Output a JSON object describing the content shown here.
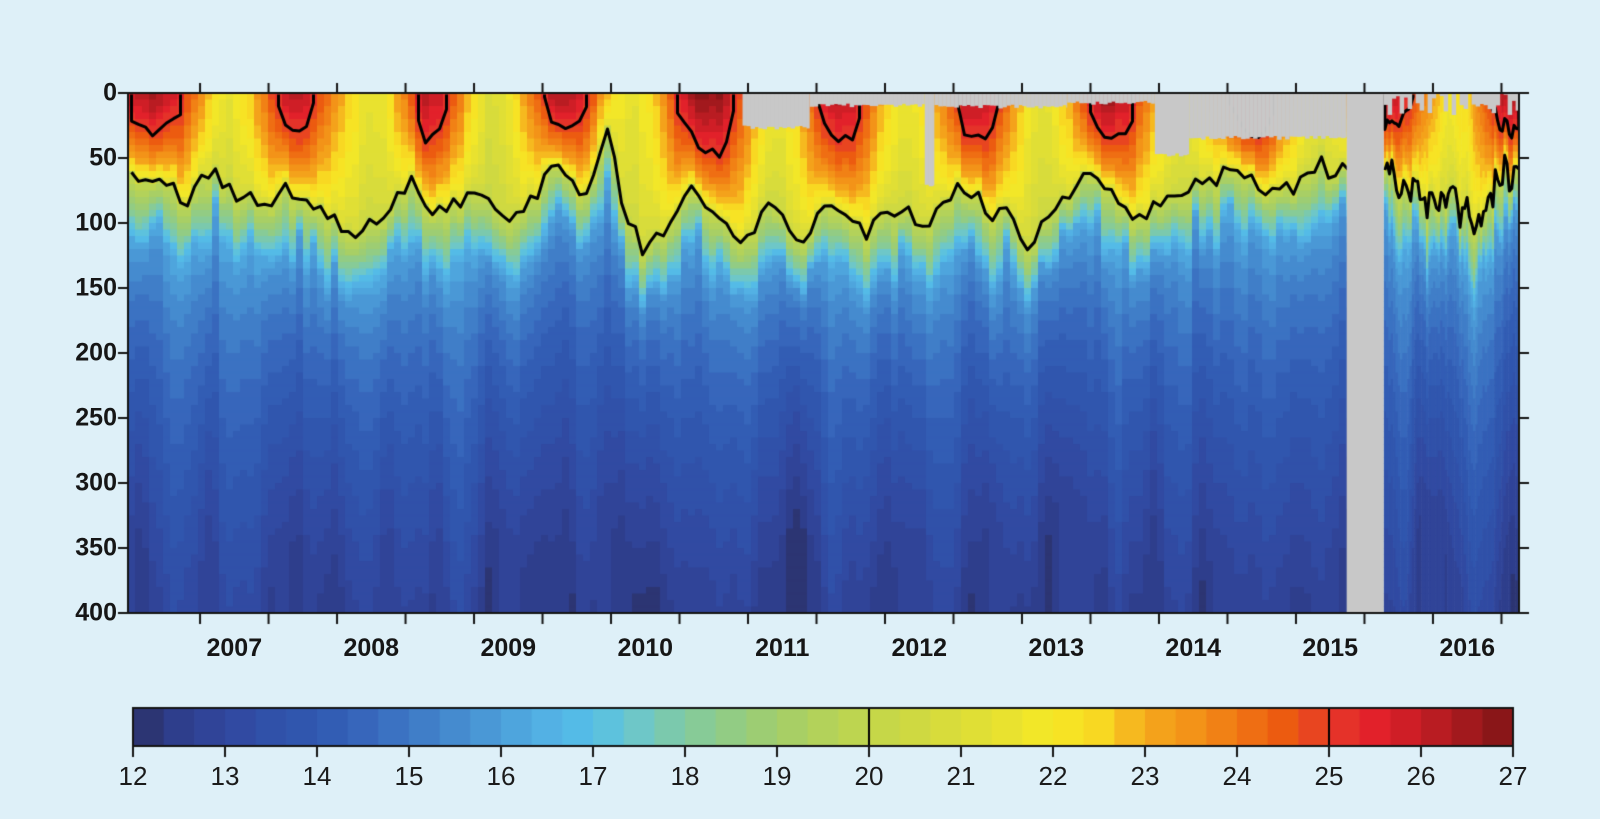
{
  "figure": {
    "background": "#def0f8",
    "frame_color": "#141414",
    "contour_color": "#000000",
    "missing_data_color": "#c8c8c8",
    "label_color": "#161616"
  },
  "chart_data": {
    "type": "heatmap",
    "title": "",
    "description": "Water temperature (deg C) versus depth (m) and time (years 2006-2016), jet colormap, black contours at 20 and 25 deg C, gray = missing data",
    "x_axis": {
      "start": 2006.474,
      "end": 2016.628,
      "minor_tick_step": 0.5,
      "year_labels": [
        "2007",
        "2008",
        "2009",
        "2010",
        "2011",
        "2012",
        "2013",
        "2014",
        "2015",
        "2016"
      ],
      "year_label_offset": 0.25
    },
    "y_axis": {
      "quantity": "depth",
      "min": 0,
      "max": 400,
      "tick_step": 50,
      "tick_labels": [
        "0",
        "50",
        "100",
        "150",
        "200",
        "250",
        "300",
        "350",
        "400"
      ]
    },
    "colorbar": {
      "min": 12,
      "max": 27,
      "segment_step": 0.3333,
      "tick_labels": [
        "12",
        "13",
        "14",
        "15",
        "16",
        "17",
        "18",
        "19",
        "20",
        "21",
        "22",
        "23",
        "24",
        "25",
        "26",
        "27"
      ],
      "marked_values": [
        20,
        25
      ],
      "colors": [
        [
          12,
          "#2b3166"
        ],
        [
          12.5,
          "#2e3e8c"
        ],
        [
          13,
          "#31479e"
        ],
        [
          13.5,
          "#3051a9"
        ],
        [
          14,
          "#3059b1"
        ],
        [
          14.5,
          "#3766bb"
        ],
        [
          15,
          "#3d78c5"
        ],
        [
          15.5,
          "#458bcf"
        ],
        [
          16,
          "#4c9fda"
        ],
        [
          16.5,
          "#53b1e4"
        ],
        [
          17,
          "#55c0e8"
        ],
        [
          17.5,
          "#6ec7c8"
        ],
        [
          18,
          "#81caa0"
        ],
        [
          18.5,
          "#92cc84"
        ],
        [
          19,
          "#a2ce6b"
        ],
        [
          19.5,
          "#b3d25a"
        ],
        [
          20,
          "#c2d64b"
        ],
        [
          20.5,
          "#cfd941"
        ],
        [
          21,
          "#dcdd38"
        ],
        [
          21.5,
          "#e9e22f"
        ],
        [
          22,
          "#f6e925"
        ],
        [
          22.5,
          "#f8d822"
        ],
        [
          23,
          "#f5a91d"
        ],
        [
          23.5,
          "#f39318"
        ],
        [
          24,
          "#f07814"
        ],
        [
          24.5,
          "#ec5b10"
        ],
        [
          25,
          "#e63a28"
        ],
        [
          25.5,
          "#e2212a"
        ],
        [
          26,
          "#c51d24"
        ],
        [
          26.5,
          "#a2191d"
        ],
        [
          27,
          "#7e1415"
        ]
      ]
    },
    "contours": {
      "levels": [
        20,
        25
      ]
    },
    "series": {
      "surface_temperature_knots": [
        [
          2006.47,
          26.2
        ],
        [
          2006.65,
          26.5
        ],
        [
          2006.85,
          25.6
        ],
        [
          2006.95,
          24.2
        ],
        [
          2007.1,
          22.2
        ],
        [
          2007.22,
          21.4
        ],
        [
          2007.35,
          22.4
        ],
        [
          2007.5,
          24.4
        ],
        [
          2007.63,
          26.3
        ],
        [
          2007.78,
          26.0
        ],
        [
          2007.9,
          24.6
        ],
        [
          2008.05,
          23.1
        ],
        [
          2008.2,
          21.5
        ],
        [
          2008.35,
          21.7
        ],
        [
          2008.5,
          24.1
        ],
        [
          2008.63,
          26.3
        ],
        [
          2008.78,
          25.7
        ],
        [
          2008.95,
          23.2
        ],
        [
          2009.1,
          21.0
        ],
        [
          2009.25,
          21.4
        ],
        [
          2009.4,
          23.6
        ],
        [
          2009.57,
          26.1
        ],
        [
          2009.68,
          26.6
        ],
        [
          2009.85,
          24.9
        ],
        [
          2010.0,
          22.4
        ],
        [
          2010.15,
          21.3
        ],
        [
          2010.3,
          22.1
        ],
        [
          2010.5,
          25.6
        ],
        [
          2010.65,
          27.0
        ],
        [
          2010.82,
          26.6
        ],
        [
          2010.95,
          24.6
        ],
        [
          2011.1,
          22.4
        ],
        [
          2011.22,
          21.6
        ],
        [
          2011.4,
          23.1
        ],
        [
          2011.55,
          25.8
        ],
        [
          2011.68,
          26.5
        ],
        [
          2011.82,
          25.6
        ],
        [
          2011.95,
          23.6
        ],
        [
          2012.1,
          21.7
        ],
        [
          2012.25,
          21.9
        ],
        [
          2012.45,
          24.1
        ],
        [
          2012.6,
          26.6
        ],
        [
          2012.75,
          26.2
        ],
        [
          2012.9,
          24.1
        ],
        [
          2013.05,
          21.9
        ],
        [
          2013.18,
          21.4
        ],
        [
          2013.35,
          23.1
        ],
        [
          2013.52,
          26.1
        ],
        [
          2013.63,
          26.7
        ],
        [
          2013.78,
          25.9
        ],
        [
          2013.9,
          24.1
        ],
        [
          2014.05,
          22.1
        ],
        [
          2014.18,
          21.3
        ],
        [
          2014.35,
          23.1
        ],
        [
          2014.55,
          25.6
        ],
        [
          2014.7,
          27.2
        ],
        [
          2014.85,
          25.1
        ],
        [
          2015.0,
          22.9
        ],
        [
          2015.15,
          21.5
        ],
        [
          2015.3,
          22.3
        ],
        [
          2015.45,
          24.6
        ],
        [
          2015.6,
          26.4
        ],
        [
          2015.73,
          26.2
        ],
        [
          2015.85,
          25.1
        ],
        [
          2016.0,
          23.1
        ],
        [
          2016.12,
          21.9
        ],
        [
          2016.25,
          22.6
        ],
        [
          2016.4,
          24.9
        ],
        [
          2016.52,
          26.6
        ],
        [
          2016.63,
          26.7
        ]
      ],
      "isotherm20_depth_knots": [
        [
          2006.47,
          68
        ],
        [
          2006.7,
          62
        ],
        [
          2006.9,
          85
        ],
        [
          2007.05,
          55
        ],
        [
          2007.3,
          80
        ],
        [
          2007.5,
          85
        ],
        [
          2007.7,
          75
        ],
        [
          2007.9,
          95
        ],
        [
          2008.16,
          115
        ],
        [
          2008.35,
          90
        ],
        [
          2008.55,
          72
        ],
        [
          2008.7,
          95
        ],
        [
          2008.9,
          80
        ],
        [
          2009.1,
          85
        ],
        [
          2009.3,
          97
        ],
        [
          2009.5,
          70
        ],
        [
          2009.62,
          52
        ],
        [
          2009.8,
          85
        ],
        [
          2009.97,
          32
        ],
        [
          2010.1,
          90
        ],
        [
          2010.25,
          120
        ],
        [
          2010.45,
          95
        ],
        [
          2010.6,
          75
        ],
        [
          2010.75,
          90
        ],
        [
          2010.9,
          118
        ],
        [
          2011.05,
          100
        ],
        [
          2011.2,
          85
        ],
        [
          2011.38,
          125
        ],
        [
          2011.55,
          80
        ],
        [
          2011.7,
          90
        ],
        [
          2011.85,
          110
        ],
        [
          2012.0,
          95
        ],
        [
          2012.15,
          85
        ],
        [
          2012.3,
          100
        ],
        [
          2012.45,
          80
        ],
        [
          2012.6,
          68
        ],
        [
          2012.75,
          90
        ],
        [
          2012.9,
          95
        ],
        [
          2013.05,
          120
        ],
        [
          2013.2,
          95
        ],
        [
          2013.35,
          78
        ],
        [
          2013.5,
          58
        ],
        [
          2013.65,
          75
        ],
        [
          2013.8,
          95
        ],
        [
          2013.95,
          85
        ],
        [
          2014.1,
          75
        ],
        [
          2014.25,
          64
        ],
        [
          2014.4,
          70
        ],
        [
          2014.55,
          58
        ],
        [
          2014.7,
          66
        ],
        [
          2014.85,
          75
        ],
        [
          2015.0,
          70
        ],
        [
          2015.15,
          55
        ],
        [
          2015.3,
          60
        ],
        [
          2015.5,
          65
        ],
        [
          2015.7,
          60
        ],
        [
          2015.82,
          72
        ],
        [
          2015.95,
          78
        ],
        [
          2016.05,
          88
        ],
        [
          2016.15,
          80
        ],
        [
          2016.25,
          95
        ],
        [
          2016.32,
          115
        ],
        [
          2016.4,
          82
        ],
        [
          2016.5,
          65
        ],
        [
          2016.63,
          55
        ]
      ],
      "profile": {
        "isotherm_ref_c": 20,
        "thermocline_drop_c": 3.5,
        "thermocline_thickness_m": 38,
        "deep_top_c": 16.5,
        "deep_bottom_c": 12.6
      }
    },
    "missing_data": [
      {
        "t_start": 2010.96,
        "t_end": 2011.45,
        "depth_to_m": 25
      },
      {
        "t_start": 2011.45,
        "t_end": 2012.29,
        "depth_to_m": 8
      },
      {
        "t_start": 2012.29,
        "t_end": 2012.36,
        "depth_to_m": 70
      },
      {
        "t_start": 2012.36,
        "t_end": 2013.33,
        "depth_to_m": 9
      },
      {
        "t_start": 2013.33,
        "t_end": 2013.97,
        "depth_to_m": 6
      },
      {
        "t_start": 2013.97,
        "t_end": 2014.22,
        "depth_to_m": 46
      },
      {
        "t_start": 2014.22,
        "t_end": 2015.37,
        "depth_to_m": 33
      },
      {
        "t_start": 2015.37,
        "t_end": 2015.64,
        "depth_to_m": 400
      },
      {
        "t_start": 2015.64,
        "t_end": 2016.63,
        "depth_to_m": 7,
        "ragged": true
      }
    ]
  }
}
